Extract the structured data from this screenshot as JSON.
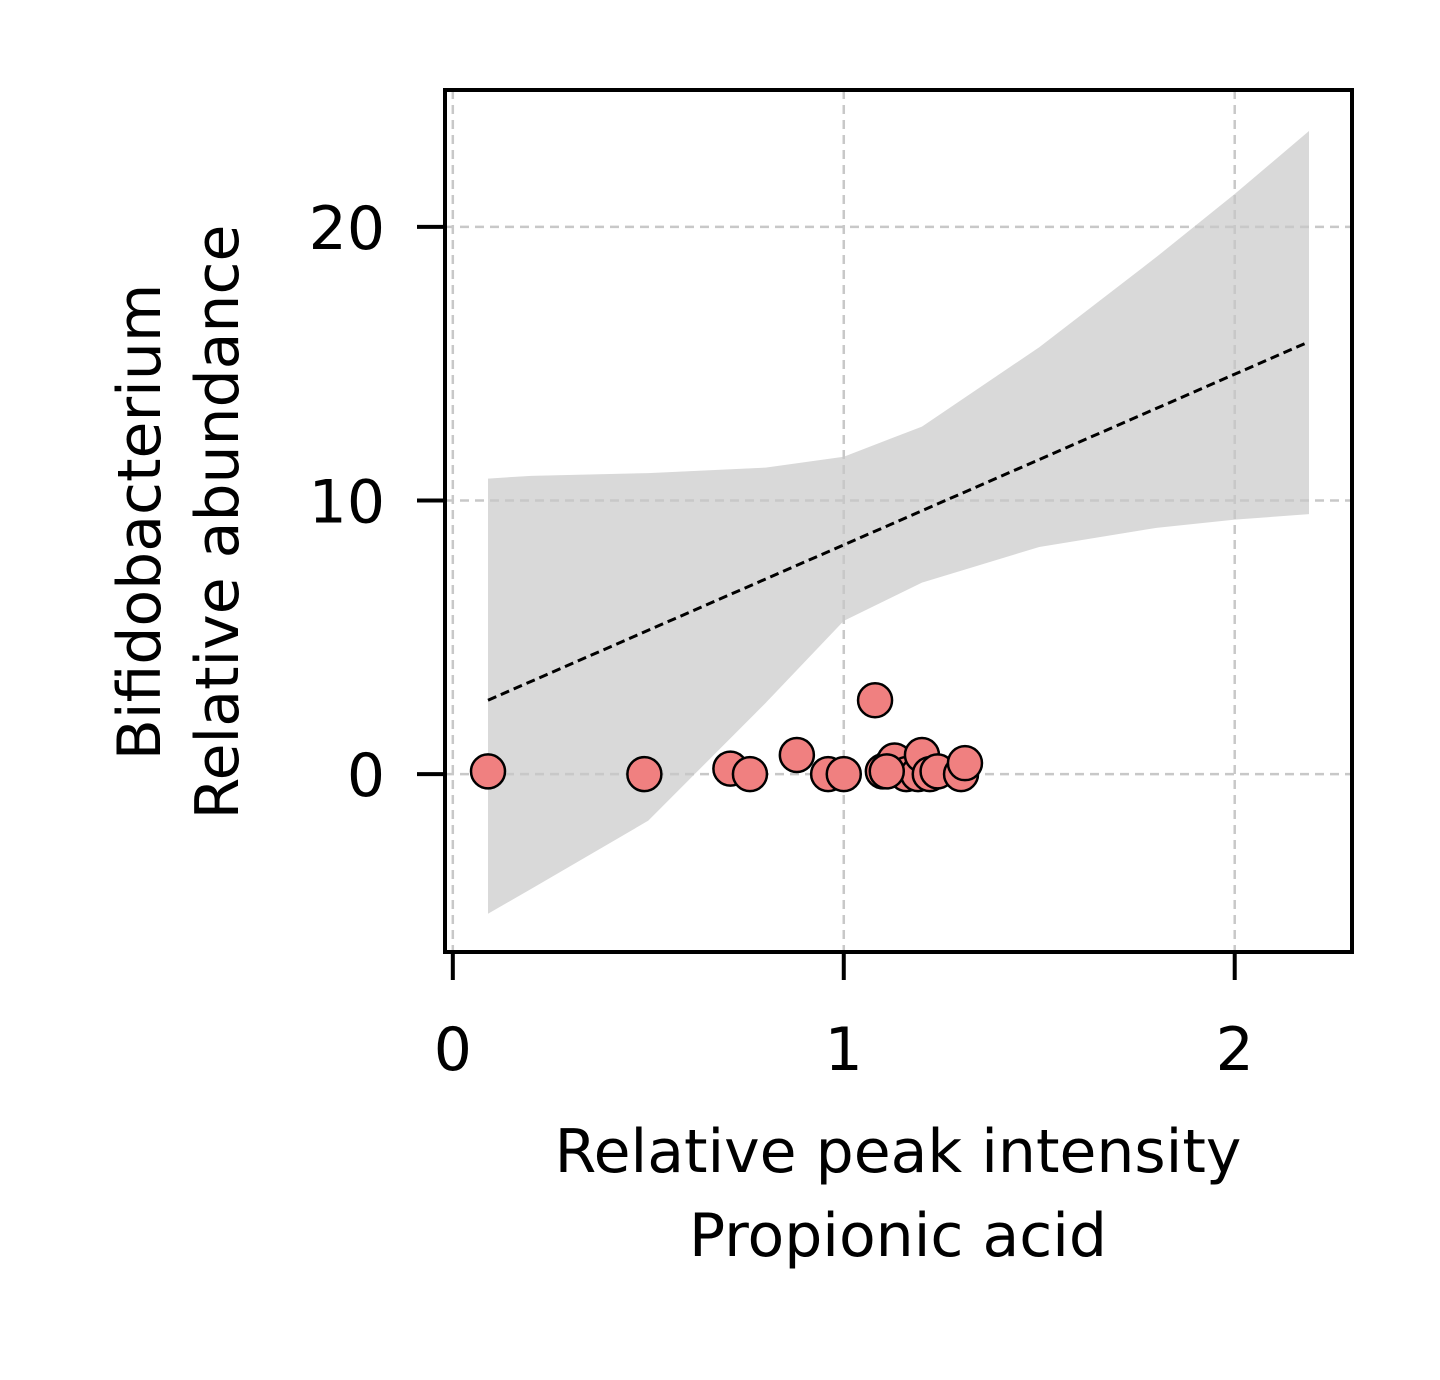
{
  "chart_data": {
    "type": "scatter",
    "xlabel": [
      "Relative peak intensity",
      "Propionic acid"
    ],
    "ylabel": [
      "Bifidobacterium",
      "Relative abundance"
    ],
    "xlim": [
      -0.02,
      2.3
    ],
    "ylim": [
      -6.5,
      25
    ],
    "x_ticks": [
      0,
      1,
      2
    ],
    "x_tick_labels": [
      "0",
      "1",
      "2"
    ],
    "y_ticks": [
      0,
      10,
      20
    ],
    "y_tick_labels": [
      "0",
      "10",
      "20"
    ],
    "grid": true,
    "grid_style": "dashed",
    "points": [
      {
        "x": 0.09,
        "y": 0.1
      },
      {
        "x": 0.49,
        "y": 0.0
      },
      {
        "x": 0.71,
        "y": 0.2
      },
      {
        "x": 0.76,
        "y": 0.0
      },
      {
        "x": 0.88,
        "y": 0.7
      },
      {
        "x": 0.96,
        "y": 0.0
      },
      {
        "x": 1.0,
        "y": 0.0
      },
      {
        "x": 1.08,
        "y": 2.7
      },
      {
        "x": 1.1,
        "y": 0.1
      },
      {
        "x": 1.12,
        "y": 0.3
      },
      {
        "x": 1.13,
        "y": 0.5
      },
      {
        "x": 1.16,
        "y": 0.0
      },
      {
        "x": 1.19,
        "y": 0.0
      },
      {
        "x": 1.2,
        "y": 0.7
      },
      {
        "x": 1.22,
        "y": 0.0
      },
      {
        "x": 1.24,
        "y": 0.1
      },
      {
        "x": 1.3,
        "y": 0.0
      },
      {
        "x": 1.31,
        "y": 0.4
      },
      {
        "x": 1.11,
        "y": 0.1
      }
    ],
    "regression_line": {
      "x": [
        0.09,
        2.19
      ],
      "y": [
        2.7,
        15.8
      ],
      "style": "dashed"
    },
    "confidence_band": {
      "x": [
        0.09,
        0.2,
        0.5,
        0.8,
        1.0,
        1.2,
        1.5,
        1.8,
        2.0,
        2.19
      ],
      "upper": [
        10.8,
        10.9,
        11.0,
        11.2,
        11.6,
        12.7,
        15.6,
        18.9,
        21.2,
        23.5
      ],
      "lower": [
        -5.1,
        -4.2,
        -1.7,
        2.6,
        5.6,
        7.0,
        8.3,
        9.0,
        9.3,
        9.5
      ]
    },
    "colors": {
      "point_fill": "#f08080",
      "point_edge": "#000000",
      "band": "#d9d9d9",
      "line": "#000000",
      "grid": "#c8c8c8"
    }
  }
}
